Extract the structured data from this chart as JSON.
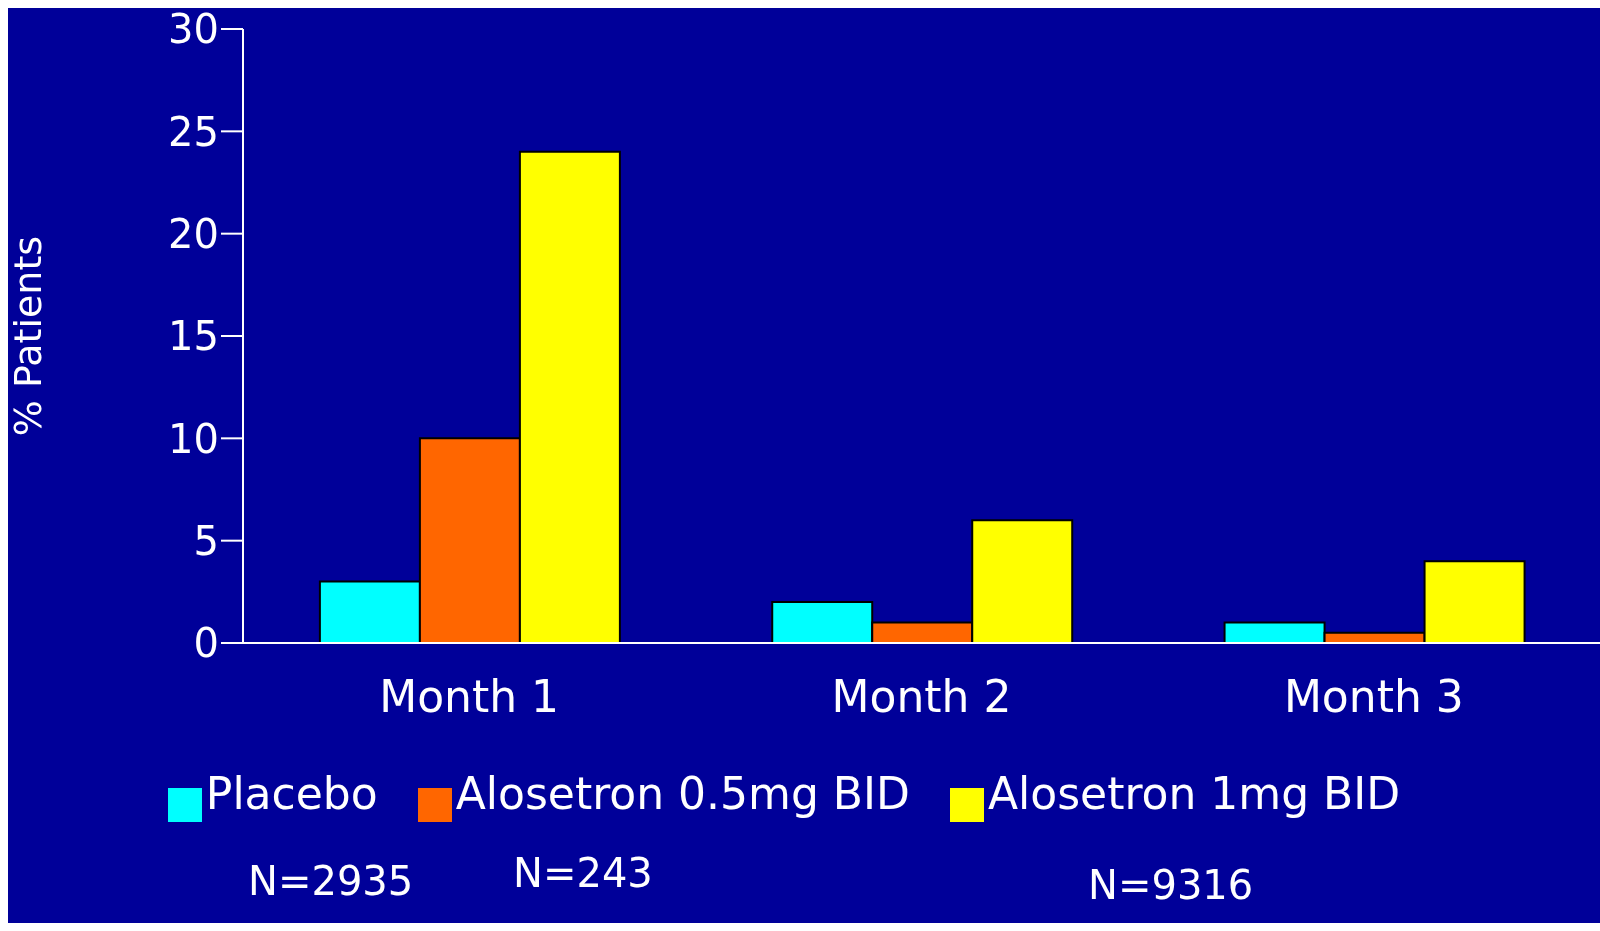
{
  "chart_data": {
    "type": "bar",
    "ylabel": "% Patients",
    "categories": [
      "Month 1",
      "Month 2",
      "Month 3"
    ],
    "series": [
      {
        "name": "Placebo",
        "color": "#00ffff",
        "values": [
          3,
          2,
          1
        ]
      },
      {
        "name": "Alosetron 0.5mg BID",
        "color": "#ff6600",
        "values": [
          10,
          1,
          0.5
        ]
      },
      {
        "name": "Alosetron 1mg BID",
        "color": "#ffff00",
        "values": [
          24,
          6,
          4
        ]
      }
    ],
    "ylim": [
      0,
      30
    ],
    "yticks": [
      0,
      5,
      10,
      15,
      20,
      25,
      30
    ],
    "grid": false,
    "legend": "bottom",
    "annotations": [
      "N=2935",
      "N=243",
      "N=9316"
    ]
  }
}
